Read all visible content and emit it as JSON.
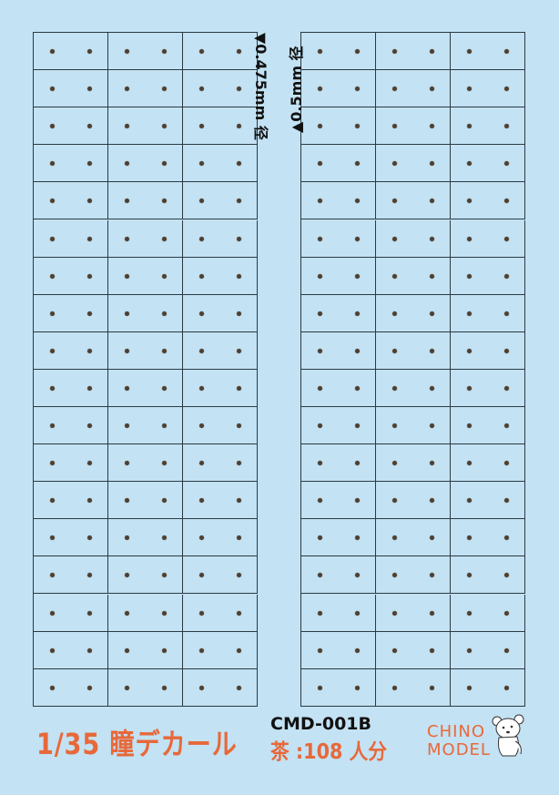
{
  "sheet": {
    "rows": 18,
    "columns_per_block": 3,
    "dots_per_cell": 2,
    "left_label": "▼0.475mm 径",
    "right_label": "▲0.5mm 径",
    "title": "1/35 瞳デカール",
    "product_code": "CMD-001B",
    "color_count": "茶 :108 人分",
    "brand_line1": "CHINO",
    "brand_line2": "MODEL",
    "logo_icon": "bear-mascot-icon"
  },
  "colors": {
    "background": "#c3e2f3",
    "dot": "#4d4032",
    "accent": "#e8683a",
    "grid": "#2b3a44"
  }
}
